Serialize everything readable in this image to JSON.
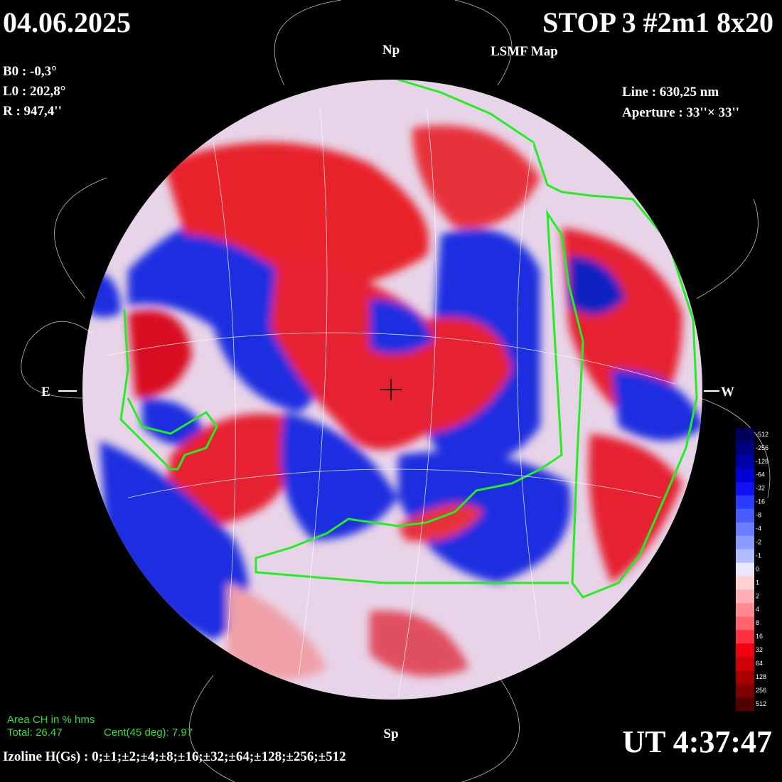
{
  "header": {
    "date": "04.06.2025",
    "station": "STOP 3 #2m1 8x20",
    "map_type": "LSMF  Map"
  },
  "ephemeris": {
    "b0": "B0 : -0,3°",
    "l0": "L0 : 202,8°",
    "radius": "R  : 947,4''"
  },
  "instrument": {
    "line": "Line :  630,25 nm",
    "aperture": "Aperture : 33''× 33''"
  },
  "directions": {
    "north": "Np",
    "south": "Sp",
    "east": "E",
    "west": "W"
  },
  "coronal_holes": {
    "title": "Area CH in % hms",
    "total": "Total: 26.47",
    "central": "Cent(45 deg): 7.97"
  },
  "time": "UT 4:37:47",
  "izoline": "Izoline H(Gs) : 0;±1;±2;±4;±8;±16;±32;±64;±128;±256;±512",
  "colorbar": {
    "labels": [
      "-512",
      "-256",
      "-128",
      "-64",
      "-32",
      "-16",
      "-8",
      "-4",
      "-2",
      "-1",
      "0",
      "1",
      "2",
      "4",
      "8",
      "16",
      "32",
      "64",
      "128",
      "256",
      "512"
    ]
  }
}
